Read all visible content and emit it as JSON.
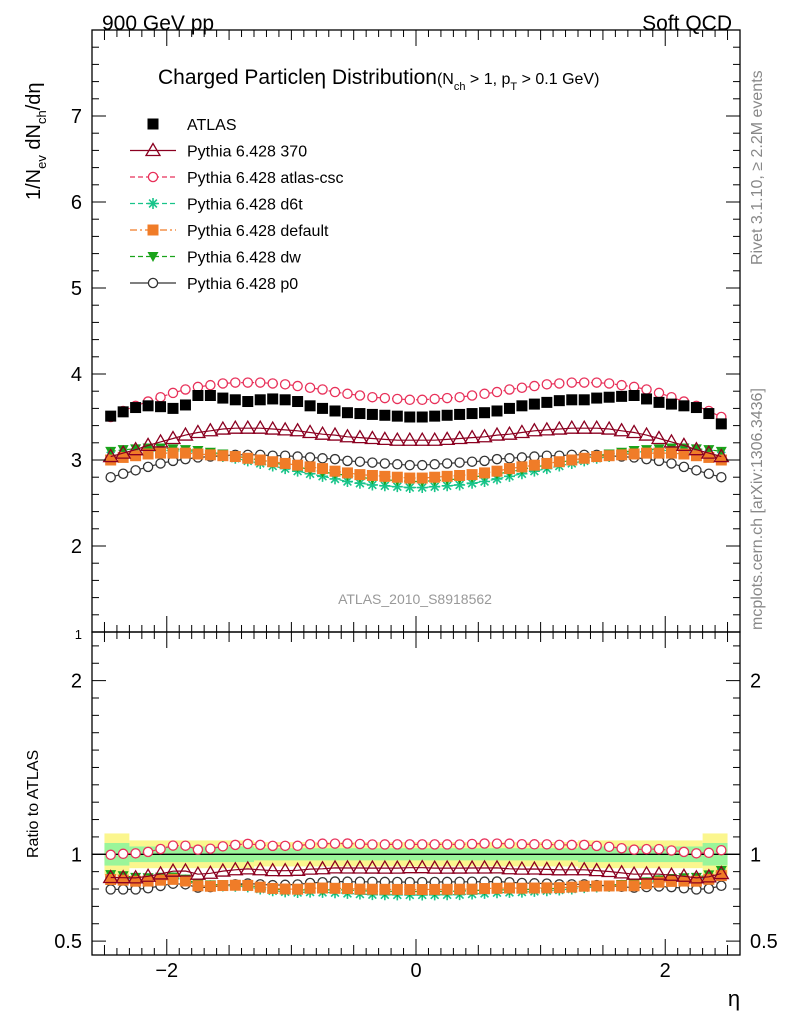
{
  "header": {
    "left": "900 GeV pp",
    "right": "Soft QCD"
  },
  "side_labels": {
    "rivet": "Rivet 3.1.10, ≥ 2.2M events",
    "mcplots": "mcplots.cern.ch [arXiv:1306.3436]"
  },
  "chart_data": {
    "type": "scatter",
    "title": "Charged Particleη Distribution",
    "title_sub": {
      "n": "(N",
      "n_sub": "ch",
      "n_rest": " > 1, p",
      "p_sub": "T",
      "p_rest": " > 0.1 GeV)"
    },
    "watermark": "ATLAS_2010_S8918562",
    "ylabel_parts": {
      "a": "1/N",
      "a_sub": "ev",
      "b": " dN",
      "b_sub": "ch",
      "c": "/dη"
    },
    "ratio_ylabel": "Ratio to ATLAS",
    "xlabel": "η",
    "xlim": [
      -2.6,
      2.6
    ],
    "ylim_main": [
      1,
      8
    ],
    "ylim_ratio": [
      0.42,
      2.28
    ],
    "main_ticks": [
      "1",
      "2",
      "3",
      "4",
      "5",
      "6",
      "7"
    ],
    "ratio_ticks": [
      "0.5",
      "1",
      "2"
    ],
    "ratio_ticks_right": [
      "0.5",
      "1",
      "2"
    ],
    "x_ticks": [
      "−2",
      "0",
      "2"
    ],
    "legend": [
      {
        "name": "ATLAS",
        "color": "#000000",
        "marker": "square-filled",
        "line": "none"
      },
      {
        "name": "Pythia 6.428 370",
        "color": "#8b0020",
        "marker": "triangle-open",
        "line": "solid"
      },
      {
        "name": "Pythia 6.428 atlas-csc",
        "color": "#e8315a",
        "marker": "circle-open",
        "line": "dashed"
      },
      {
        "name": "Pythia 6.428 d6t",
        "color": "#18c48a",
        "marker": "star",
        "line": "dashed"
      },
      {
        "name": "Pythia 6.428 default",
        "color": "#f07c28",
        "marker": "square-filled",
        "line": "dashdot"
      },
      {
        "name": "Pythia 6.428 dw",
        "color": "#1aa31a",
        "marker": "triangle-down-filled",
        "line": "dashed"
      },
      {
        "name": "Pythia 6.428 p0",
        "color": "#333333",
        "marker": "circle-open",
        "line": "solid"
      }
    ],
    "x": [
      -2.45,
      -2.35,
      -2.25,
      -2.15,
      -2.05,
      -1.95,
      -1.85,
      -1.75,
      -1.65,
      -1.55,
      -1.45,
      -1.35,
      -1.25,
      -1.15,
      -1.05,
      -0.95,
      -0.85,
      -0.75,
      -0.65,
      -0.55,
      -0.45,
      -0.35,
      -0.25,
      -0.15,
      -0.05,
      0.05,
      0.15,
      0.25,
      0.35,
      0.45,
      0.55,
      0.65,
      0.75,
      0.85,
      0.95,
      1.05,
      1.15,
      1.25,
      1.35,
      1.45,
      1.55,
      1.65,
      1.75,
      1.85,
      1.95,
      2.05,
      2.15,
      2.25,
      2.35,
      2.45
    ],
    "series": [
      {
        "name": "ATLAS",
        "values": [
          3.51,
          3.56,
          3.61,
          3.63,
          3.62,
          3.6,
          3.64,
          3.75,
          3.75,
          3.72,
          3.7,
          3.68,
          3.7,
          3.71,
          3.7,
          3.68,
          3.63,
          3.6,
          3.57,
          3.55,
          3.54,
          3.53,
          3.52,
          3.51,
          3.5,
          3.5,
          3.51,
          3.52,
          3.53,
          3.54,
          3.55,
          3.57,
          3.6,
          3.63,
          3.65,
          3.67,
          3.69,
          3.7,
          3.7,
          3.72,
          3.73,
          3.74,
          3.75,
          3.71,
          3.67,
          3.65,
          3.63,
          3.61,
          3.54,
          3.42
        ]
      },
      {
        "name": "Pythia 6.428 370",
        "values": [
          3.04,
          3.08,
          3.12,
          3.17,
          3.21,
          3.25,
          3.29,
          3.32,
          3.34,
          3.36,
          3.37,
          3.37,
          3.37,
          3.36,
          3.35,
          3.34,
          3.32,
          3.3,
          3.29,
          3.27,
          3.26,
          3.25,
          3.24,
          3.23,
          3.23,
          3.23,
          3.23,
          3.24,
          3.25,
          3.26,
          3.27,
          3.29,
          3.3,
          3.32,
          3.34,
          3.35,
          3.36,
          3.37,
          3.37,
          3.37,
          3.36,
          3.34,
          3.32,
          3.29,
          3.25,
          3.21,
          3.17,
          3.12,
          3.08,
          3.04
        ]
      },
      {
        "name": "Pythia 6.428 atlas-csc",
        "values": [
          3.5,
          3.57,
          3.63,
          3.68,
          3.73,
          3.78,
          3.82,
          3.85,
          3.87,
          3.89,
          3.9,
          3.9,
          3.9,
          3.89,
          3.88,
          3.86,
          3.84,
          3.82,
          3.79,
          3.77,
          3.75,
          3.73,
          3.72,
          3.71,
          3.7,
          3.7,
          3.71,
          3.72,
          3.73,
          3.75,
          3.77,
          3.79,
          3.82,
          3.84,
          3.86,
          3.88,
          3.89,
          3.9,
          3.9,
          3.9,
          3.89,
          3.87,
          3.85,
          3.82,
          3.78,
          3.73,
          3.68,
          3.63,
          3.57,
          3.5
        ]
      },
      {
        "name": "Pythia 6.428 d6t",
        "values": [
          3.05,
          3.07,
          3.09,
          3.1,
          3.11,
          3.11,
          3.1,
          3.09,
          3.07,
          3.04,
          3.02,
          2.99,
          2.96,
          2.93,
          2.9,
          2.87,
          2.84,
          2.81,
          2.78,
          2.75,
          2.73,
          2.71,
          2.7,
          2.69,
          2.68,
          2.68,
          2.69,
          2.7,
          2.71,
          2.73,
          2.75,
          2.78,
          2.81,
          2.84,
          2.87,
          2.9,
          2.93,
          2.96,
          2.99,
          3.02,
          3.04,
          3.07,
          3.09,
          3.1,
          3.11,
          3.11,
          3.1,
          3.09,
          3.07,
          3.05
        ]
      },
      {
        "name": "Pythia 6.428 default",
        "values": [
          3.0,
          3.03,
          3.05,
          3.07,
          3.08,
          3.08,
          3.08,
          3.07,
          3.06,
          3.05,
          3.04,
          3.02,
          3.0,
          2.98,
          2.96,
          2.94,
          2.92,
          2.9,
          2.87,
          2.85,
          2.83,
          2.82,
          2.81,
          2.8,
          2.79,
          2.79,
          2.8,
          2.81,
          2.82,
          2.83,
          2.85,
          2.87,
          2.9,
          2.92,
          2.94,
          2.96,
          2.98,
          3.0,
          3.02,
          3.04,
          3.05,
          3.06,
          3.07,
          3.08,
          3.08,
          3.08,
          3.07,
          3.05,
          3.03,
          3.0
        ]
      },
      {
        "name": "Pythia 6.428 dw",
        "values": [
          3.1,
          3.12,
          3.13,
          3.14,
          3.14,
          3.13,
          3.12,
          3.11,
          3.09,
          3.07,
          3.05,
          3.02,
          3.0,
          2.97,
          2.94,
          2.92,
          2.89,
          2.86,
          2.84,
          2.82,
          2.8,
          2.78,
          2.77,
          2.76,
          2.75,
          2.75,
          2.76,
          2.77,
          2.78,
          2.8,
          2.82,
          2.84,
          2.86,
          2.89,
          2.92,
          2.94,
          2.97,
          3.0,
          3.02,
          3.05,
          3.07,
          3.09,
          3.11,
          3.12,
          3.13,
          3.14,
          3.14,
          3.13,
          3.12,
          3.1
        ]
      },
      {
        "name": "Pythia 6.428 p0",
        "values": [
          2.8,
          2.84,
          2.88,
          2.92,
          2.96,
          2.99,
          3.01,
          3.03,
          3.04,
          3.05,
          3.06,
          3.06,
          3.06,
          3.05,
          3.05,
          3.04,
          3.03,
          3.02,
          3.01,
          2.99,
          2.98,
          2.97,
          2.96,
          2.95,
          2.94,
          2.94,
          2.95,
          2.96,
          2.97,
          2.98,
          2.99,
          3.01,
          3.02,
          3.03,
          3.04,
          3.05,
          3.05,
          3.06,
          3.06,
          3.06,
          3.05,
          3.04,
          3.03,
          3.01,
          2.99,
          2.96,
          2.92,
          2.88,
          2.84,
          2.8
        ]
      }
    ],
    "ratio_bands": {
      "yellow": [
        {
          "x0": -2.5,
          "x1": -2.3,
          "lo": 0.88,
          "hi": 1.12
        },
        {
          "x0": -2.3,
          "x1": -1.3,
          "lo": 0.92,
          "hi": 1.08
        },
        {
          "x0": -1.3,
          "x1": 1.3,
          "lo": 0.93,
          "hi": 1.07
        },
        {
          "x0": 1.3,
          "x1": 2.3,
          "lo": 0.92,
          "hi": 1.08
        },
        {
          "x0": 2.3,
          "x1": 2.5,
          "lo": 0.88,
          "hi": 1.12
        }
      ],
      "green": [
        {
          "x0": -2.5,
          "x1": -2.3,
          "lo": 0.935,
          "hi": 1.065
        },
        {
          "x0": -2.3,
          "x1": -1.3,
          "lo": 0.955,
          "hi": 1.045
        },
        {
          "x0": -1.3,
          "x1": 1.3,
          "lo": 0.965,
          "hi": 1.035
        },
        {
          "x0": 1.3,
          "x1": 2.3,
          "lo": 0.955,
          "hi": 1.045
        },
        {
          "x0": 2.3,
          "x1": 2.5,
          "lo": 0.935,
          "hi": 1.065
        }
      ]
    }
  }
}
